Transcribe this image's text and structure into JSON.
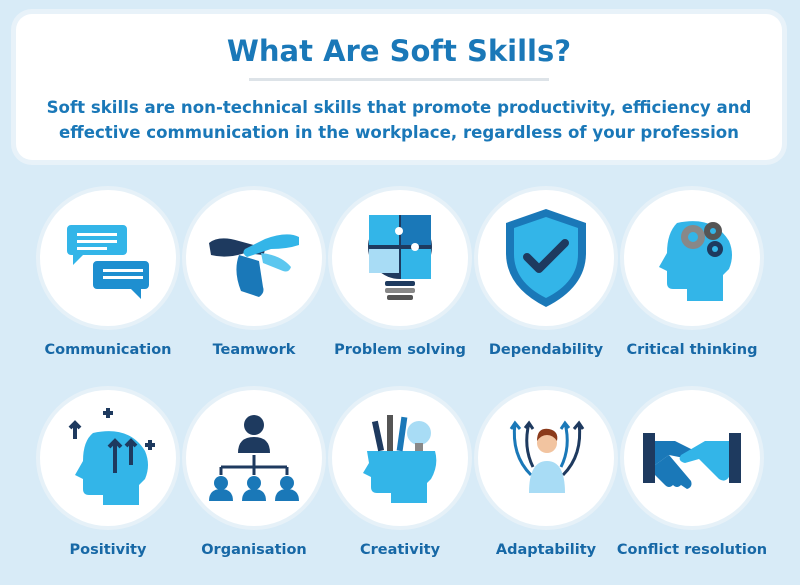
{
  "header": {
    "title": "What Are Soft Skills?",
    "subtitle_line1": "Soft skills are non-technical skills that promote productivity, efficiency and",
    "subtitle_line2": "effective communication in the workplace, regardless of your profession"
  },
  "skills": [
    {
      "label": "Communication",
      "icon": "speech-bubbles-icon"
    },
    {
      "label": "Teamwork",
      "icon": "stacked-hands-icon"
    },
    {
      "label": "Problem solving",
      "icon": "puzzle-lightbulb-icon"
    },
    {
      "label": "Dependability",
      "icon": "shield-check-icon"
    },
    {
      "label": "Critical thinking",
      "icon": "head-gears-icon"
    },
    {
      "label": "Positivity",
      "icon": "head-arrows-icon"
    },
    {
      "label": "Organisation",
      "icon": "org-chart-icon"
    },
    {
      "label": "Creativity",
      "icon": "head-tools-icon"
    },
    {
      "label": "Adaptability",
      "icon": "person-arrows-icon"
    },
    {
      "label": "Conflict resolution",
      "icon": "handshake-icon"
    }
  ],
  "colors": {
    "background": "#d8ebf7",
    "primary_blue": "#1a78b8",
    "light_blue": "#33b5e8",
    "navy": "#1e3a5f"
  }
}
